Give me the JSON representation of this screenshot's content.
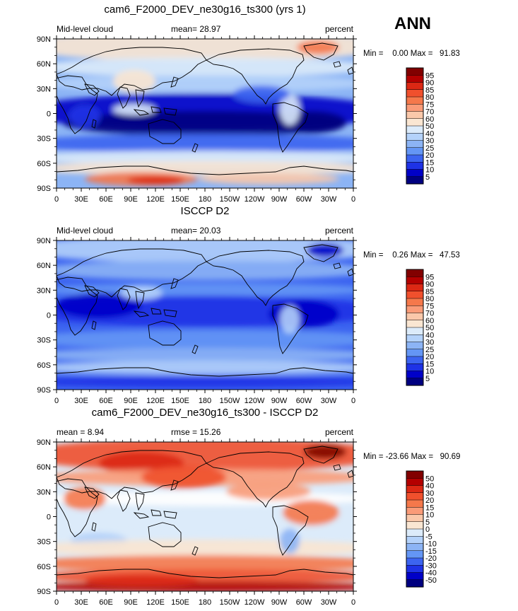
{
  "season": "ANN",
  "colors": {
    "cloud_levels": [
      "#000080",
      "#0000c8",
      "#1e32e6",
      "#3c64f0",
      "#6496f5",
      "#8cb4f5",
      "#b4d2fa",
      "#dcebfa",
      "#ffffff",
      "#fae6d2",
      "#fac8aa",
      "#fa9b78",
      "#f5784b",
      "#f0502d",
      "#dc2814",
      "#b40000",
      "#820000"
    ],
    "diff_levels": [
      "#000080",
      "#0000c8",
      "#1e32e6",
      "#3c64f0",
      "#6496f5",
      "#8cb4f5",
      "#b4d2fa",
      "#dcebfa",
      "#ffffff",
      "#fae6d2",
      "#fac8aa",
      "#fa9b78",
      "#f5784b",
      "#f0502d",
      "#dc2814",
      "#b40000",
      "#820000"
    ]
  },
  "axes": {
    "lat_ticks": [
      "90N",
      "60N",
      "30N",
      "0",
      "30S",
      "60S",
      "90S"
    ],
    "lon_ticks": [
      "0",
      "30E",
      "60E",
      "90E",
      "120E",
      "150E",
      "180",
      "150W",
      "120W",
      "90W",
      "60W",
      "30W",
      "0"
    ]
  },
  "panels": [
    {
      "title": "cam6_F2000_DEV_ne30g16_ts300 (yrs 1)",
      "left_label": "Mid-level cloud",
      "stat1": "mean=   28.97",
      "stat2": "",
      "units": "percent",
      "minmax": "Min =    0.00 Max =   91.83",
      "colorbar_labels": [
        "95",
        "90",
        "85",
        "80",
        "75",
        "70",
        "60",
        "50",
        "40",
        "30",
        "25",
        "20",
        "15",
        "10",
        "5"
      ],
      "map_kind": "model"
    },
    {
      "title": "ISCCP D2",
      "left_label": "Mid-level cloud",
      "stat1": "mean=   20.03",
      "stat2": "",
      "units": "percent",
      "minmax": "Min =    0.26 Max =   47.53",
      "colorbar_labels": [
        "95",
        "90",
        "85",
        "80",
        "75",
        "70",
        "60",
        "50",
        "40",
        "30",
        "25",
        "20",
        "15",
        "10",
        "5"
      ],
      "map_kind": "obs"
    },
    {
      "title": "cam6_F2000_DEV_ne30g16_ts300 - ISCCP D2",
      "left_label": "mean =    8.94",
      "stat1": "",
      "stat2": "rmse =   15.26",
      "units": "percent",
      "minmax": "Min = -23.66 Max =   90.69",
      "colorbar_labels": [
        "50",
        "40",
        "30",
        "20",
        "15",
        "10",
        "5",
        "0",
        "-5",
        "-10",
        "-15",
        "-20",
        "-30",
        "-40",
        "-50"
      ],
      "map_kind": "diff"
    }
  ]
}
